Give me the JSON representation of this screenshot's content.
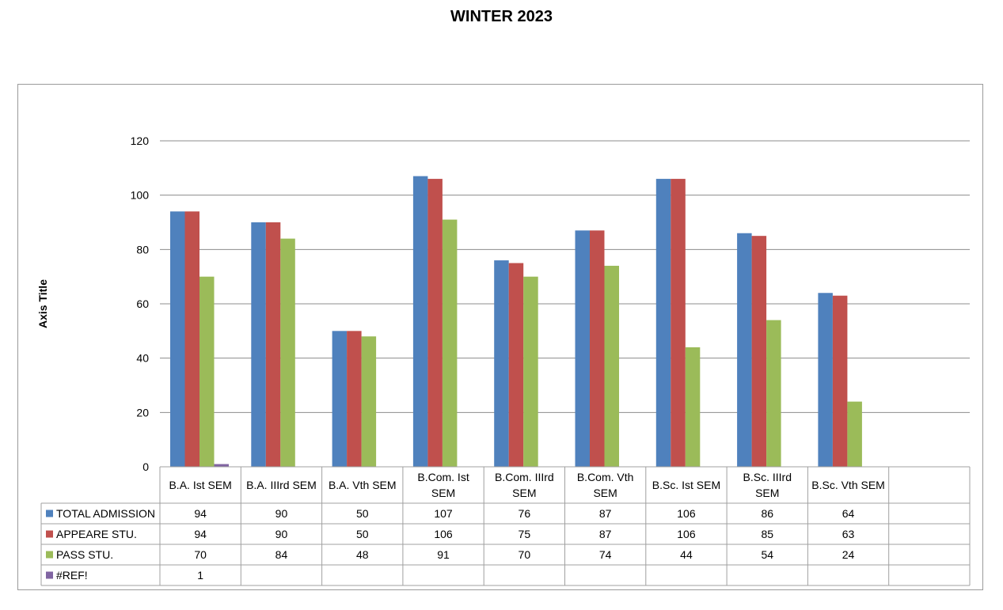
{
  "title": "WINTER 2023",
  "chart_data": {
    "type": "bar",
    "title": "WINTER 2023",
    "ylabel": "Axis Title",
    "xlabel": "",
    "ylim": [
      0,
      120
    ],
    "yticks": [
      0,
      20,
      40,
      60,
      80,
      100,
      120
    ],
    "grid": true,
    "legend": "data-table",
    "categories": [
      [
        "B.A. Ist SEM"
      ],
      [
        "B.A. IIIrd SEM"
      ],
      [
        "B.A. Vth SEM"
      ],
      [
        "B.Com. Ist",
        "SEM"
      ],
      [
        "B.Com. IIIrd",
        "SEM"
      ],
      [
        "B.Com. Vth",
        "SEM"
      ],
      [
        "B.Sc. Ist SEM"
      ],
      [
        "B.Sc. IIIrd",
        "SEM"
      ],
      [
        "B.Sc. Vth SEM"
      ],
      [
        ""
      ]
    ],
    "series": [
      {
        "name": "TOTAL ADMISSION",
        "color": "#4F81BD",
        "values": [
          94,
          90,
          50,
          107,
          76,
          87,
          106,
          86,
          64,
          null
        ]
      },
      {
        "name": "APPEARE STU.",
        "color": "#C0504D",
        "values": [
          94,
          90,
          50,
          106,
          75,
          87,
          106,
          85,
          63,
          null
        ]
      },
      {
        "name": "PASS STU.",
        "color": "#9BBB59",
        "values": [
          70,
          84,
          48,
          91,
          70,
          74,
          44,
          54,
          24,
          null
        ]
      },
      {
        "name": "#REF!",
        "color": "#8064A2",
        "values": [
          1,
          null,
          null,
          null,
          null,
          null,
          null,
          null,
          null,
          null
        ]
      }
    ]
  }
}
